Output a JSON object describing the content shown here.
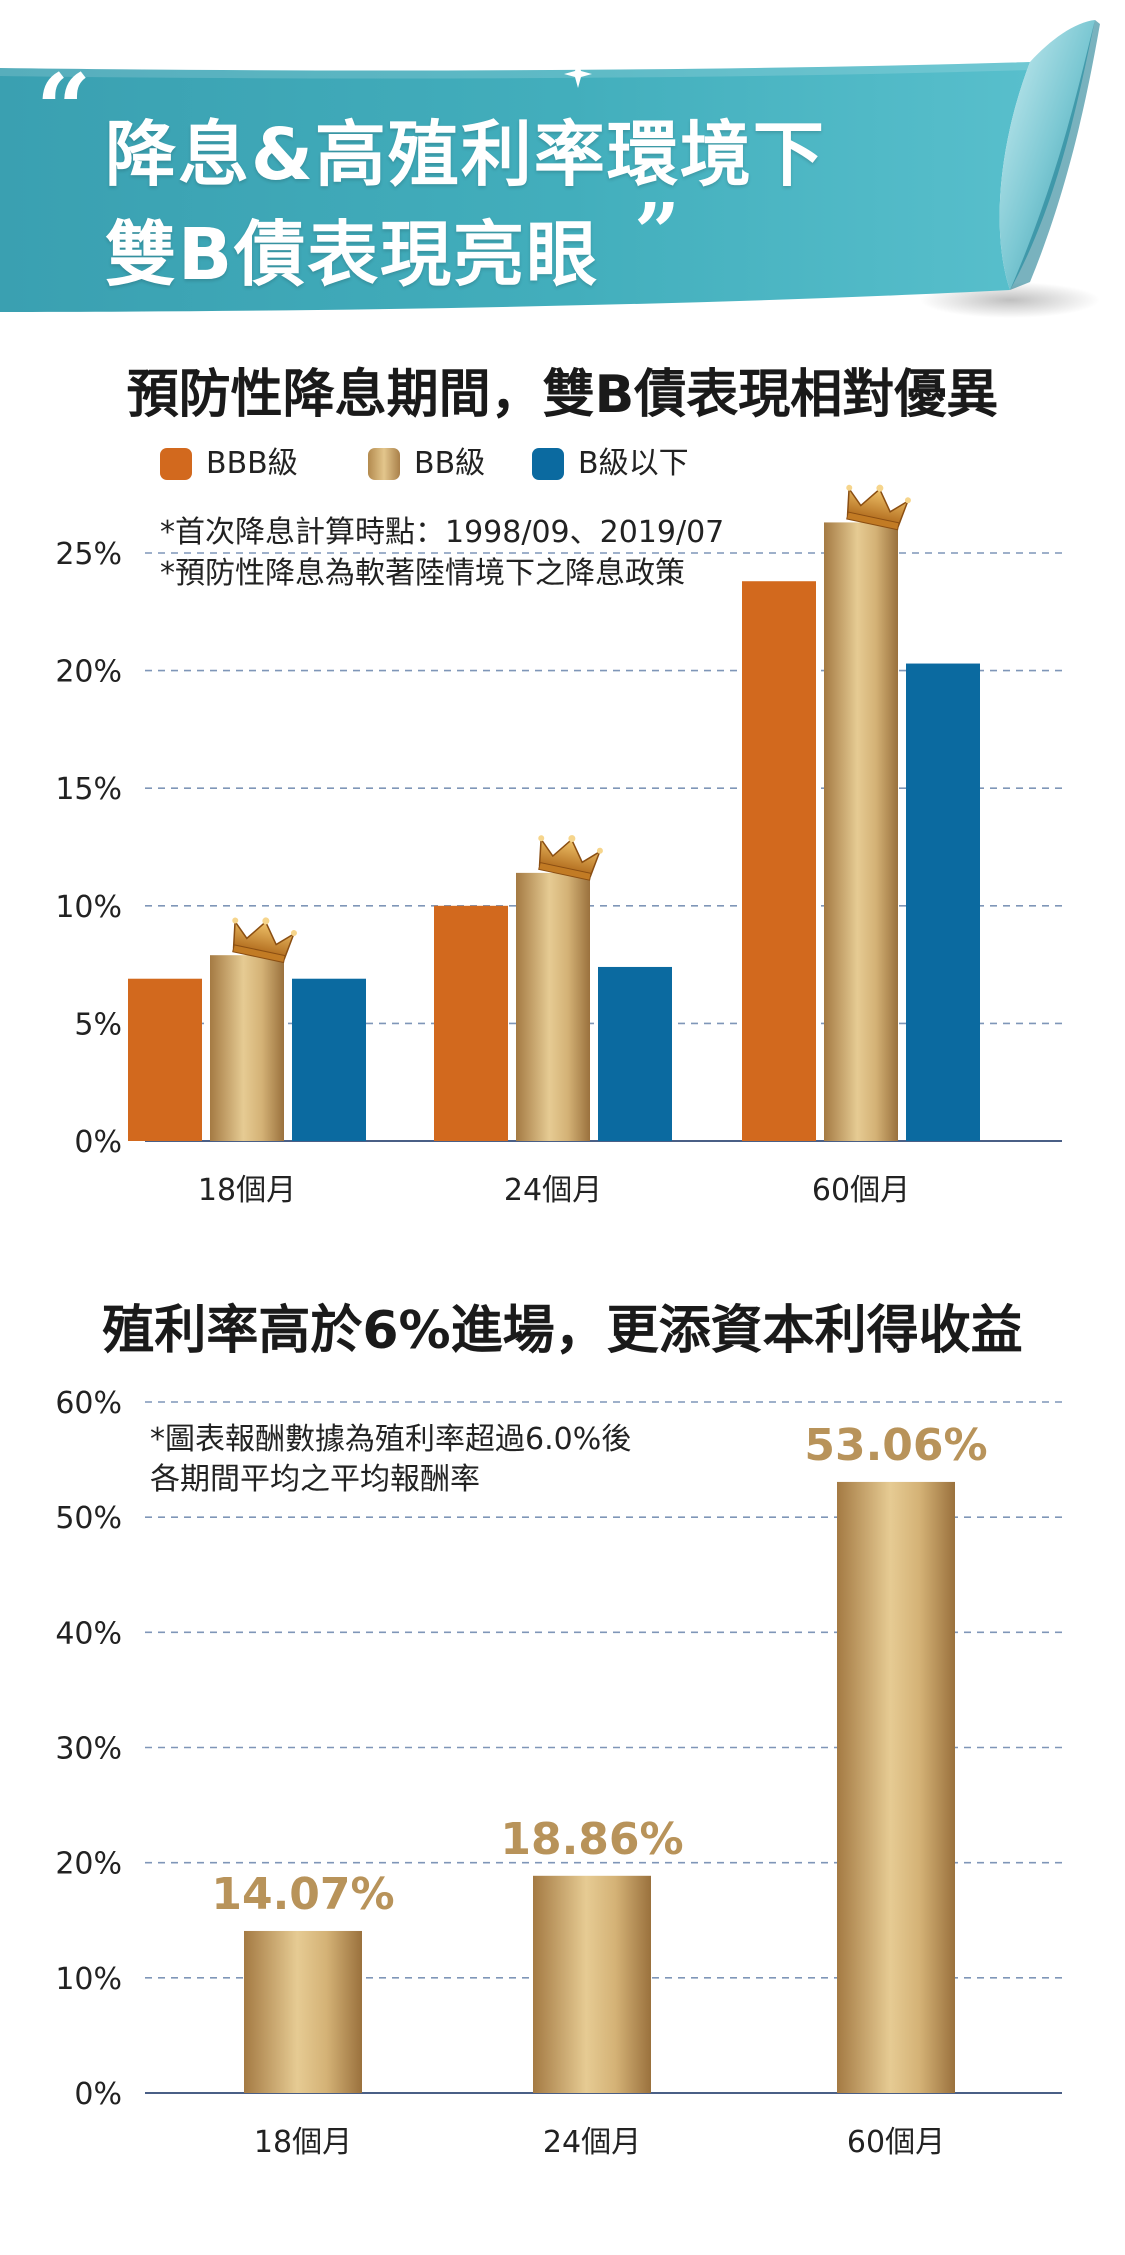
{
  "banner": {
    "quote_open": "“",
    "line1": "降息&高殖利率環境下",
    "line2": "雙B債表現亮眼",
    "quote_close": "”",
    "colors": {
      "banner": "#3aa4b4",
      "banner_light": "#7fd0da",
      "curl": "#2b8fa3"
    }
  },
  "chart_data": [
    {
      "type": "bar",
      "title": "預防性降息期間，雙B債表現相對優異",
      "categories": [
        "18個月",
        "24個月",
        "60個月"
      ],
      "series": [
        {
          "name": "BBB級",
          "values": [
            6.9,
            10.0,
            23.8
          ],
          "color": "#d2691e"
        },
        {
          "name": "BB級",
          "values": [
            7.9,
            11.4,
            26.3
          ],
          "color": "#c9a868"
        },
        {
          "name": "B級以下",
          "values": [
            6.9,
            7.4,
            20.3
          ],
          "color": "#0b6aa0"
        }
      ],
      "ylim": [
        0,
        25
      ],
      "yticks": [
        "0%",
        "5%",
        "10%",
        "15%",
        "20%",
        "25%"
      ],
      "grid": true,
      "legend": "top-left",
      "notes": [
        "*首次降息計算時點：1998/09、2019/07",
        "*預防性降息為軟著陸情境下之降息政策"
      ],
      "crown_series": "BB級",
      "crown_icon": "crown-icon"
    },
    {
      "type": "bar",
      "title": "殖利率高於6%進場，更添資本利得收益",
      "categories": [
        "18個月",
        "24個月",
        "60個月"
      ],
      "series": [
        {
          "values": [
            14.07,
            18.86,
            53.06
          ],
          "color": "#c9a868"
        }
      ],
      "data_labels": [
        "14.07%",
        "18.86%",
        "53.06%"
      ],
      "label_color": "#b8935a",
      "ylim": [
        0,
        60
      ],
      "yticks": [
        "0%",
        "10%",
        "20%",
        "30%",
        "40%",
        "50%",
        "60%"
      ],
      "grid": true,
      "notes": [
        "*圖表報酬數據為殖利率超過6.0%後",
        "各期間平均之平均報酬率"
      ]
    }
  ]
}
